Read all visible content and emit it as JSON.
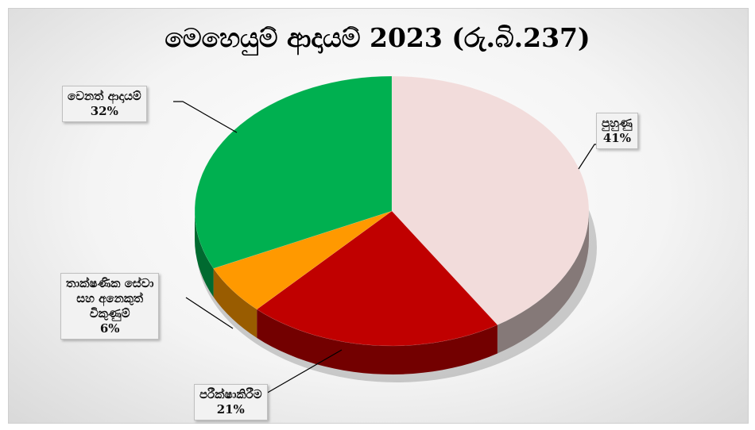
{
  "chart_data": {
    "type": "pie",
    "title": "මෙහෙයුම් ආදායම් 2023 (රු.බි.237)",
    "three_d": true,
    "legend": "none",
    "slices": [
      {
        "label": "පුහුණු",
        "percent_label": "41%",
        "value": 41,
        "color": "#f2dcdb"
      },
      {
        "label": "පරීක්ෂාකිරීම",
        "percent_label": "21%",
        "value": 21,
        "color": "#c00000"
      },
      {
        "label": "තාක්ෂණික සේවා සහ අනෙකුත් විකුණුම්",
        "label_lines": [
          "තාක්ෂණික සේවා",
          "සහ අනෙකුත්",
          "විකුණුම්"
        ],
        "percent_label": "6%",
        "value": 6,
        "color": "#ff9900"
      },
      {
        "label": "වෙනත් ආදායම්",
        "percent_label": "32%",
        "value": 32,
        "color": "#00b050"
      }
    ]
  }
}
